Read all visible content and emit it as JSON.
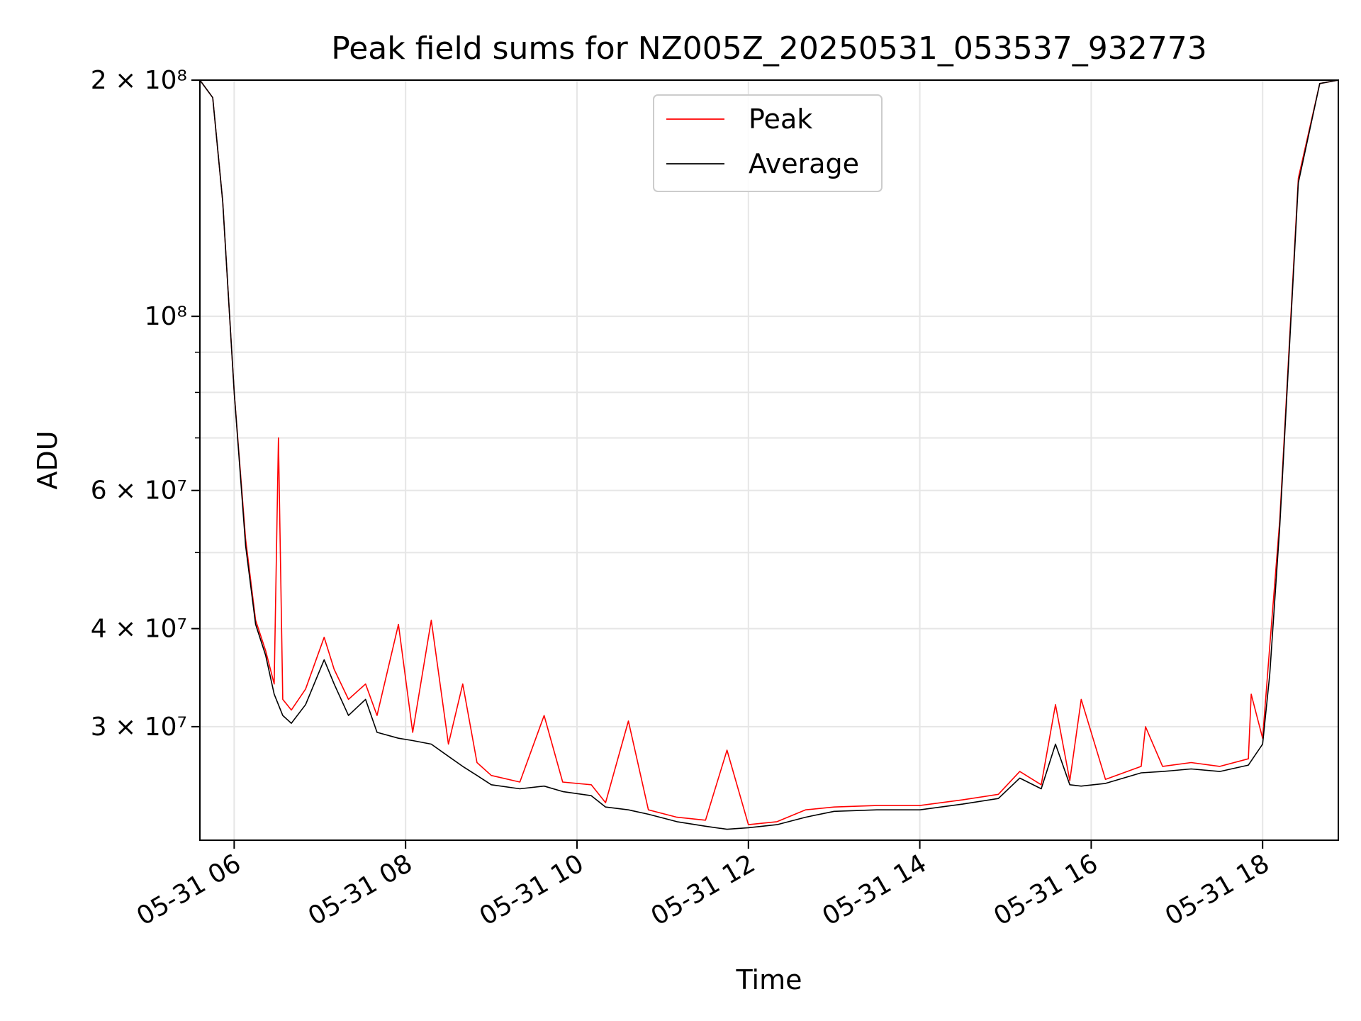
{
  "chart_data": {
    "type": "line",
    "title": "Peak field sums for NZ005Z_20250531_053537_932773",
    "xlabel": "Time",
    "ylabel": "ADU",
    "y_scale": "log",
    "xlim": [
      "2025-05-31 05:36",
      "2025-05-31 18:53"
    ],
    "ylim": [
      21500000,
      200000000
    ],
    "x_ticks": [
      "05-31 06",
      "05-31 08",
      "05-31 10",
      "05-31 12",
      "05-31 14",
      "05-31 16",
      "05-31 18"
    ],
    "y_major_ticks": [
      {
        "value": 30000000,
        "label": "3 × 10⁷"
      },
      {
        "value": 40000000,
        "label": "4 × 10⁷"
      },
      {
        "value": 60000000,
        "label": "6 × 10⁷"
      },
      {
        "value": 100000000,
        "label": "10⁸"
      },
      {
        "value": 200000000,
        "label": "2 × 10⁸"
      }
    ],
    "grid": true,
    "legend": {
      "placement": "top-center",
      "entries": [
        "Peak",
        "Average"
      ]
    },
    "colors": {
      "peak": "#ff0000",
      "average": "#000000"
    },
    "series": [
      {
        "name": "Peak",
        "color": "#ff0000",
        "points": [
          [
            "2025-05-31 05:36",
            200000000
          ],
          [
            "2025-05-31 05:45",
            190000000
          ],
          [
            "2025-05-31 05:52",
            140000000
          ],
          [
            "2025-05-31 06:00",
            80000000
          ],
          [
            "2025-05-31 06:08",
            52000000
          ],
          [
            "2025-05-31 06:15",
            41000000
          ],
          [
            "2025-05-31 06:22",
            37500000
          ],
          [
            "2025-05-31 06:28",
            34000000
          ],
          [
            "2025-05-31 06:31",
            70000000
          ],
          [
            "2025-05-31 06:34",
            32500000
          ],
          [
            "2025-05-31 06:40",
            31500000
          ],
          [
            "2025-05-31 06:50",
            33500000
          ],
          [
            "2025-05-31 07:03",
            39000000
          ],
          [
            "2025-05-31 07:10",
            35500000
          ],
          [
            "2025-05-31 07:20",
            32500000
          ],
          [
            "2025-05-31 07:32",
            34000000
          ],
          [
            "2025-05-31 07:40",
            31000000
          ],
          [
            "2025-05-31 07:55",
            40500000
          ],
          [
            "2025-05-31 08:05",
            29500000
          ],
          [
            "2025-05-31 08:18",
            41000000
          ],
          [
            "2025-05-31 08:30",
            28500000
          ],
          [
            "2025-05-31 08:40",
            34000000
          ],
          [
            "2025-05-31 08:50",
            27000000
          ],
          [
            "2025-05-31 09:00",
            26000000
          ],
          [
            "2025-05-31 09:20",
            25500000
          ],
          [
            "2025-05-31 09:37",
            31000000
          ],
          [
            "2025-05-31 09:50",
            25500000
          ],
          [
            "2025-05-31 10:10",
            25300000
          ],
          [
            "2025-05-31 10:20",
            24000000
          ],
          [
            "2025-05-31 10:36",
            30500000
          ],
          [
            "2025-05-31 10:50",
            23500000
          ],
          [
            "2025-05-31 11:10",
            23000000
          ],
          [
            "2025-05-31 11:30",
            22800000
          ],
          [
            "2025-05-31 11:45",
            28000000
          ],
          [
            "2025-05-31 12:00",
            22500000
          ],
          [
            "2025-05-31 12:20",
            22700000
          ],
          [
            "2025-05-31 12:40",
            23500000
          ],
          [
            "2025-05-31 13:00",
            23700000
          ],
          [
            "2025-05-31 13:30",
            23800000
          ],
          [
            "2025-05-31 14:00",
            23800000
          ],
          [
            "2025-05-31 14:30",
            24200000
          ],
          [
            "2025-05-31 14:55",
            24600000
          ],
          [
            "2025-05-31 15:10",
            26300000
          ],
          [
            "2025-05-31 15:25",
            25300000
          ],
          [
            "2025-05-31 15:35",
            32000000
          ],
          [
            "2025-05-31 15:45",
            25600000
          ],
          [
            "2025-05-31 15:53",
            32500000
          ],
          [
            "2025-05-31 16:10",
            25700000
          ],
          [
            "2025-05-31 16:35",
            26700000
          ],
          [
            "2025-05-31 16:38",
            30000000
          ],
          [
            "2025-05-31 16:50",
            26700000
          ],
          [
            "2025-05-31 17:10",
            27000000
          ],
          [
            "2025-05-31 17:30",
            26700000
          ],
          [
            "2025-05-31 17:50",
            27300000
          ],
          [
            "2025-05-31 17:52",
            33000000
          ],
          [
            "2025-05-31 18:00",
            29000000
          ],
          [
            "2025-05-31 18:05",
            38000000
          ],
          [
            "2025-05-31 18:12",
            55000000
          ],
          [
            "2025-05-31 18:25",
            150000000
          ],
          [
            "2025-05-31 18:40",
            198000000
          ],
          [
            "2025-05-31 18:53",
            200000000
          ]
        ]
      },
      {
        "name": "Average",
        "color": "#000000",
        "points": [
          [
            "2025-05-31 05:36",
            200000000
          ],
          [
            "2025-05-31 05:45",
            190000000
          ],
          [
            "2025-05-31 05:52",
            140000000
          ],
          [
            "2025-05-31 06:00",
            80000000
          ],
          [
            "2025-05-31 06:08",
            51000000
          ],
          [
            "2025-05-31 06:15",
            40500000
          ],
          [
            "2025-05-31 06:22",
            37000000
          ],
          [
            "2025-05-31 06:28",
            33000000
          ],
          [
            "2025-05-31 06:34",
            31000000
          ],
          [
            "2025-05-31 06:40",
            30300000
          ],
          [
            "2025-05-31 06:50",
            32000000
          ],
          [
            "2025-05-31 07:03",
            36500000
          ],
          [
            "2025-05-31 07:10",
            34000000
          ],
          [
            "2025-05-31 07:20",
            31000000
          ],
          [
            "2025-05-31 07:32",
            32500000
          ],
          [
            "2025-05-31 07:40",
            29500000
          ],
          [
            "2025-05-31 07:55",
            29000000
          ],
          [
            "2025-05-31 08:05",
            28800000
          ],
          [
            "2025-05-31 08:18",
            28500000
          ],
          [
            "2025-05-31 08:30",
            27500000
          ],
          [
            "2025-05-31 08:40",
            26700000
          ],
          [
            "2025-05-31 08:50",
            26000000
          ],
          [
            "2025-05-31 09:00",
            25300000
          ],
          [
            "2025-05-31 09:20",
            25000000
          ],
          [
            "2025-05-31 09:37",
            25200000
          ],
          [
            "2025-05-31 09:50",
            24800000
          ],
          [
            "2025-05-31 10:10",
            24500000
          ],
          [
            "2025-05-31 10:20",
            23700000
          ],
          [
            "2025-05-31 10:36",
            23500000
          ],
          [
            "2025-05-31 10:50",
            23200000
          ],
          [
            "2025-05-31 11:10",
            22700000
          ],
          [
            "2025-05-31 11:30",
            22400000
          ],
          [
            "2025-05-31 11:45",
            22200000
          ],
          [
            "2025-05-31 12:00",
            22300000
          ],
          [
            "2025-05-31 12:20",
            22500000
          ],
          [
            "2025-05-31 12:40",
            23000000
          ],
          [
            "2025-05-31 13:00",
            23400000
          ],
          [
            "2025-05-31 13:30",
            23500000
          ],
          [
            "2025-05-31 14:00",
            23500000
          ],
          [
            "2025-05-31 14:30",
            23900000
          ],
          [
            "2025-05-31 14:55",
            24300000
          ],
          [
            "2025-05-31 15:10",
            25800000
          ],
          [
            "2025-05-31 15:25",
            25000000
          ],
          [
            "2025-05-31 15:35",
            28500000
          ],
          [
            "2025-05-31 15:45",
            25300000
          ],
          [
            "2025-05-31 15:53",
            25200000
          ],
          [
            "2025-05-31 16:10",
            25400000
          ],
          [
            "2025-05-31 16:35",
            26200000
          ],
          [
            "2025-05-31 16:50",
            26300000
          ],
          [
            "2025-05-31 17:10",
            26500000
          ],
          [
            "2025-05-31 17:30",
            26300000
          ],
          [
            "2025-05-31 17:50",
            26800000
          ],
          [
            "2025-05-31 18:00",
            28500000
          ],
          [
            "2025-05-31 18:05",
            35000000
          ],
          [
            "2025-05-31 18:12",
            54000000
          ],
          [
            "2025-05-31 18:25",
            148000000
          ],
          [
            "2025-05-31 18:40",
            198000000
          ],
          [
            "2025-05-31 18:53",
            200000000
          ]
        ]
      }
    ]
  }
}
